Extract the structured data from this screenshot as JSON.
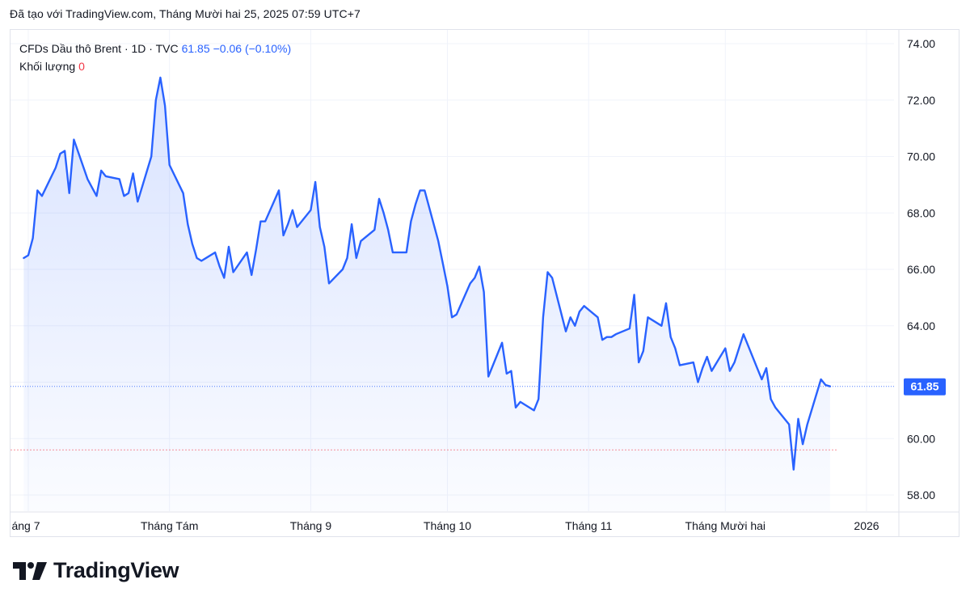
{
  "header": {
    "created_with": "Đã tạo với TradingView.com, Tháng Mười hai 25, 2025 07:59 UTC+7"
  },
  "legend": {
    "symbol": "CFDs Dầu thô Brent · 1D · TVC",
    "last_price": "61.85",
    "change": "−0.06 (−0.10%)",
    "volume_label": "Khối lượng",
    "volume_value": "0"
  },
  "footer": {
    "brand": "TradingView"
  },
  "colors": {
    "line": "#2962ff",
    "price_tag": "#2962ff",
    "prev_close_line": "#f23645",
    "fill_top": "#dbe4fb"
  },
  "chart_data": {
    "type": "area",
    "title": "",
    "xlabel": "",
    "ylabel": "",
    "ylim": [
      57.2,
      74.8
    ],
    "y_ticks": [
      "58.00",
      "60.00",
      "62.00",
      "64.00",
      "66.00",
      "68.00",
      "70.00",
      "72.00",
      "74.00"
    ],
    "x_ticks": [
      "áng 7",
      "Tháng Tám",
      "Tháng 9",
      "Tháng 10",
      "Tháng 11",
      "Tháng Mười hai",
      "2026"
    ],
    "x_tick_dates": [
      "2025-07-01",
      "2025-08-01",
      "2025-09-01",
      "2025-10-01",
      "2025-11-01",
      "2025-12-01",
      "2026-01-01"
    ],
    "last_value_label": "61.85",
    "reference_line": 59.6,
    "grid": true,
    "series": [
      {
        "points": [
          [
            "2025-06-30",
            66.4
          ],
          [
            "2025-07-01",
            66.5
          ],
          [
            "2025-07-02",
            67.1
          ],
          [
            "2025-07-03",
            68.8
          ],
          [
            "2025-07-04",
            68.6
          ],
          [
            "2025-07-07",
            69.6
          ],
          [
            "2025-07-08",
            70.1
          ],
          [
            "2025-07-09",
            70.2
          ],
          [
            "2025-07-10",
            68.7
          ],
          [
            "2025-07-11",
            70.6
          ],
          [
            "2025-07-14",
            69.2
          ],
          [
            "2025-07-15",
            68.9
          ],
          [
            "2025-07-16",
            68.6
          ],
          [
            "2025-07-17",
            69.5
          ],
          [
            "2025-07-18",
            69.3
          ],
          [
            "2025-07-21",
            69.2
          ],
          [
            "2025-07-22",
            68.6
          ],
          [
            "2025-07-23",
            68.7
          ],
          [
            "2025-07-24",
            69.4
          ],
          [
            "2025-07-25",
            68.4
          ],
          [
            "2025-07-28",
            70.0
          ],
          [
            "2025-07-29",
            72.0
          ],
          [
            "2025-07-30",
            72.8
          ],
          [
            "2025-07-31",
            71.8
          ],
          [
            "2025-08-01",
            69.7
          ],
          [
            "2025-08-04",
            68.7
          ],
          [
            "2025-08-05",
            67.6
          ],
          [
            "2025-08-06",
            66.9
          ],
          [
            "2025-08-07",
            66.4
          ],
          [
            "2025-08-08",
            66.3
          ],
          [
            "2025-08-11",
            66.6
          ],
          [
            "2025-08-12",
            66.1
          ],
          [
            "2025-08-13",
            65.7
          ],
          [
            "2025-08-14",
            66.8
          ],
          [
            "2025-08-15",
            65.9
          ],
          [
            "2025-08-18",
            66.6
          ],
          [
            "2025-08-19",
            65.8
          ],
          [
            "2025-08-20",
            66.7
          ],
          [
            "2025-08-21",
            67.7
          ],
          [
            "2025-08-22",
            67.7
          ],
          [
            "2025-08-25",
            68.8
          ],
          [
            "2025-08-26",
            67.2
          ],
          [
            "2025-08-27",
            67.6
          ],
          [
            "2025-08-28",
            68.1
          ],
          [
            "2025-08-29",
            67.5
          ],
          [
            "2025-09-01",
            68.1
          ],
          [
            "2025-09-02",
            69.1
          ],
          [
            "2025-09-03",
            67.5
          ],
          [
            "2025-09-04",
            66.8
          ],
          [
            "2025-09-05",
            65.5
          ],
          [
            "2025-09-08",
            66.0
          ],
          [
            "2025-09-09",
            66.4
          ],
          [
            "2025-09-10",
            67.6
          ],
          [
            "2025-09-11",
            66.4
          ],
          [
            "2025-09-12",
            67.0
          ],
          [
            "2025-09-15",
            67.4
          ],
          [
            "2025-09-16",
            68.5
          ],
          [
            "2025-09-17",
            68.0
          ],
          [
            "2025-09-18",
            67.4
          ],
          [
            "2025-09-19",
            66.6
          ],
          [
            "2025-09-22",
            66.6
          ],
          [
            "2025-09-23",
            67.7
          ],
          [
            "2025-09-24",
            68.3
          ],
          [
            "2025-09-25",
            68.8
          ],
          [
            "2025-09-26",
            68.8
          ],
          [
            "2025-09-29",
            67.0
          ],
          [
            "2025-09-30",
            66.2
          ],
          [
            "2025-10-01",
            65.4
          ],
          [
            "2025-10-02",
            64.3
          ],
          [
            "2025-10-03",
            64.4
          ],
          [
            "2025-10-06",
            65.5
          ],
          [
            "2025-10-07",
            65.7
          ],
          [
            "2025-10-08",
            66.1
          ],
          [
            "2025-10-09",
            65.2
          ],
          [
            "2025-10-10",
            62.2
          ],
          [
            "2025-10-13",
            63.4
          ],
          [
            "2025-10-14",
            62.3
          ],
          [
            "2025-10-15",
            62.4
          ],
          [
            "2025-10-16",
            61.1
          ],
          [
            "2025-10-17",
            61.3
          ],
          [
            "2025-10-20",
            61.0
          ],
          [
            "2025-10-21",
            61.4
          ],
          [
            "2025-10-22",
            64.3
          ],
          [
            "2025-10-23",
            65.9
          ],
          [
            "2025-10-24",
            65.7
          ],
          [
            "2025-10-27",
            63.8
          ],
          [
            "2025-10-28",
            64.3
          ],
          [
            "2025-10-29",
            64.0
          ],
          [
            "2025-10-30",
            64.5
          ],
          [
            "2025-10-31",
            64.7
          ],
          [
            "2025-11-03",
            64.3
          ],
          [
            "2025-11-04",
            63.5
          ],
          [
            "2025-11-05",
            63.6
          ],
          [
            "2025-11-06",
            63.6
          ],
          [
            "2025-11-07",
            63.7
          ],
          [
            "2025-11-10",
            63.9
          ],
          [
            "2025-11-11",
            65.1
          ],
          [
            "2025-11-12",
            62.7
          ],
          [
            "2025-11-13",
            63.1
          ],
          [
            "2025-11-14",
            64.3
          ],
          [
            "2025-11-17",
            64.0
          ],
          [
            "2025-11-18",
            64.8
          ],
          [
            "2025-11-19",
            63.6
          ],
          [
            "2025-11-20",
            63.2
          ],
          [
            "2025-11-21",
            62.6
          ],
          [
            "2025-11-24",
            62.7
          ],
          [
            "2025-11-25",
            62.0
          ],
          [
            "2025-11-26",
            62.5
          ],
          [
            "2025-11-27",
            62.9
          ],
          [
            "2025-11-28",
            62.4
          ],
          [
            "2025-12-01",
            63.2
          ],
          [
            "2025-12-02",
            62.4
          ],
          [
            "2025-12-03",
            62.7
          ],
          [
            "2025-12-04",
            63.2
          ],
          [
            "2025-12-05",
            63.7
          ],
          [
            "2025-12-08",
            62.5
          ],
          [
            "2025-12-09",
            62.1
          ],
          [
            "2025-12-10",
            62.5
          ],
          [
            "2025-12-11",
            61.4
          ],
          [
            "2025-12-12",
            61.1
          ],
          [
            "2025-12-15",
            60.5
          ],
          [
            "2025-12-16",
            58.9
          ],
          [
            "2025-12-17",
            60.7
          ],
          [
            "2025-12-18",
            59.8
          ],
          [
            "2025-12-19",
            60.5
          ],
          [
            "2025-12-22",
            62.1
          ],
          [
            "2025-12-23",
            61.9
          ],
          [
            "2025-12-24",
            61.85
          ]
        ]
      }
    ]
  }
}
